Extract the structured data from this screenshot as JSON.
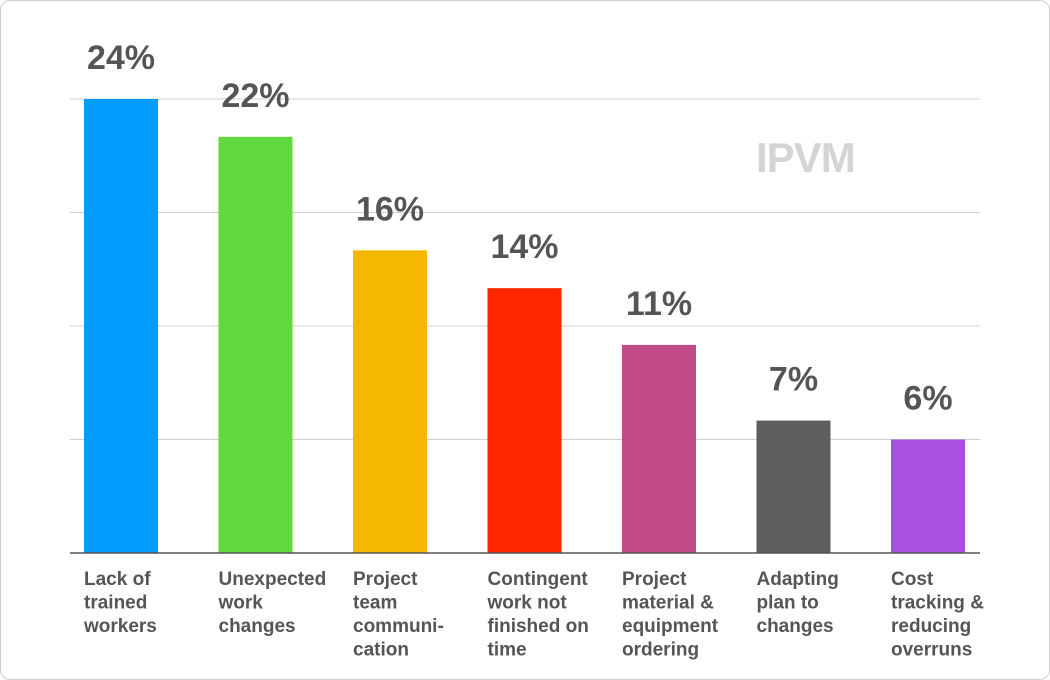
{
  "chart_data": {
    "type": "bar",
    "categories": [
      "Lack of trained workers",
      "Unexpected work changes",
      "Project team communi- cation",
      "Contingent work not finished on time",
      "Project material & equipment ordering",
      "Adapting plan to changes",
      "Cost tracking & reducing overruns"
    ],
    "category_lines": [
      [
        "Lack of",
        "trained",
        "workers"
      ],
      [
        "Unexpected",
        "work",
        "changes"
      ],
      [
        "Project",
        "team",
        "communi-",
        "cation"
      ],
      [
        "Contingent",
        "work not",
        "finished on",
        "time"
      ],
      [
        "Project",
        "material &",
        "equipment",
        "ordering"
      ],
      [
        "Adapting",
        "plan to",
        "changes"
      ],
      [
        "Cost",
        "tracking &",
        "reducing",
        "overruns"
      ]
    ],
    "values": [
      24,
      22,
      16,
      14,
      11,
      7,
      6
    ],
    "value_labels": [
      "24%",
      "22%",
      "16%",
      "14%",
      "11%",
      "7%",
      "6%"
    ],
    "colors": [
      "#009cff",
      "#62d93e",
      "#f5b800",
      "#ff2600",
      "#c04a85",
      "#5e5e5e",
      "#a851e0"
    ],
    "ylim": [
      0,
      24
    ],
    "gridlines": [
      0,
      6,
      12,
      18,
      24
    ],
    "grid": true,
    "title": "",
    "xlabel": "",
    "ylabel": ""
  },
  "watermark": "IPVM"
}
